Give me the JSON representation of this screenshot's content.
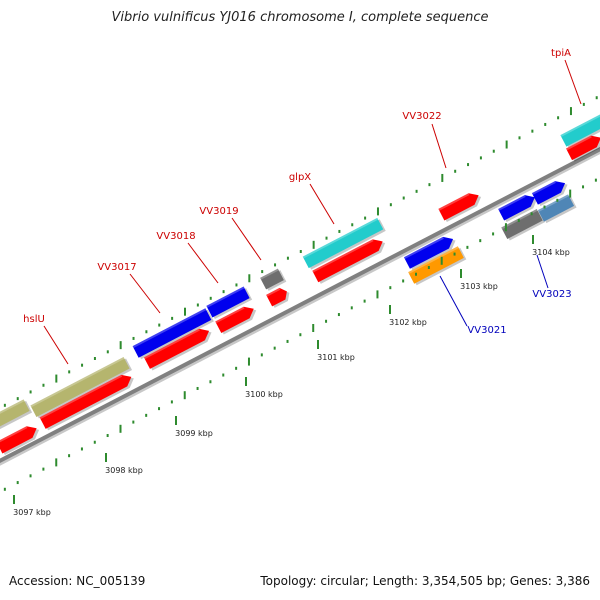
{
  "title": "Vibrio vulnificus YJ016 chromosome I, complete sequence",
  "footer": {
    "accession": "Accession: NC_005139",
    "summary": "Topology: circular; Length: 3,354,505 bp; Genes: 3,386"
  },
  "scale": {
    "ticks": [
      "3097 kbp",
      "3098 kbp",
      "3099 kbp",
      "3100 kbp",
      "3101 kbp",
      "3102 kbp",
      "3103 kbp",
      "3104 kbp"
    ]
  },
  "colors": {
    "backbone": "#808080",
    "red": "#ff0000",
    "blue": "#0000ee",
    "cyan": "#22cccc",
    "olive": "#b5b56e",
    "gray": "#6e6e6e",
    "steel": "#4f86b6",
    "orange": "#ff9900",
    "tick": "#2e8b2e",
    "label_red": "#cc0000",
    "label_blue": "#0000bb"
  },
  "gene_labels": [
    {
      "name": "hslU",
      "color": "red"
    },
    {
      "name": "VV3017",
      "color": "red"
    },
    {
      "name": "VV3018",
      "color": "red"
    },
    {
      "name": "VV3019",
      "color": "red"
    },
    {
      "name": "glpX",
      "color": "red"
    },
    {
      "name": "VV3022",
      "color": "red"
    },
    {
      "name": "tpiA",
      "color": "red"
    },
    {
      "name": "VV3021",
      "color": "blue"
    },
    {
      "name": "VV3023",
      "color": "blue"
    }
  ]
}
